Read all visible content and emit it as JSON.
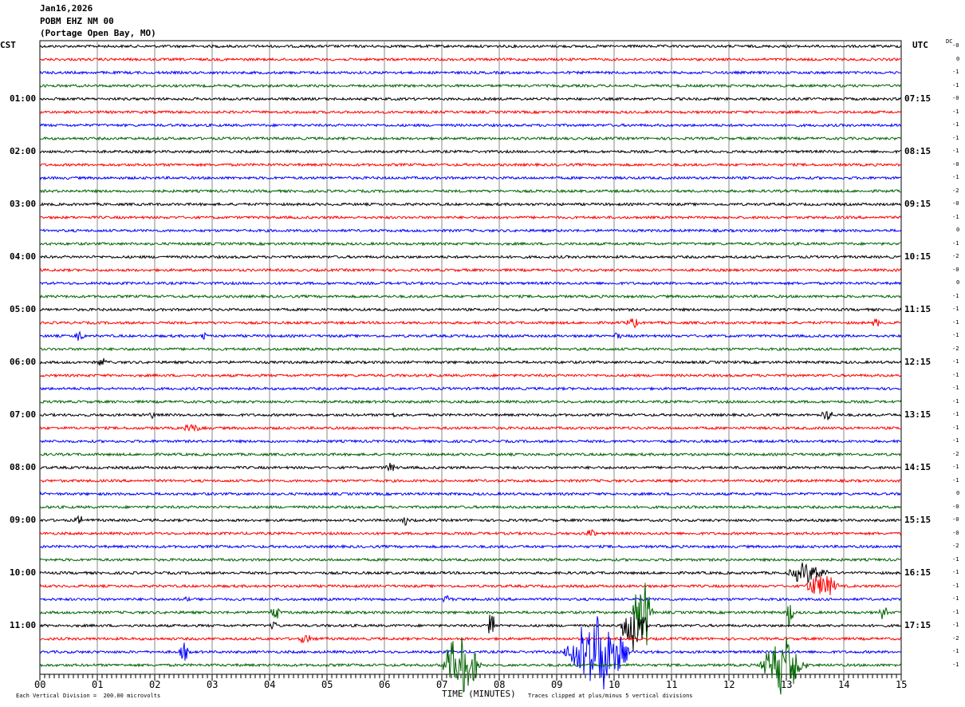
{
  "header": {
    "date": "Jan16,2026",
    "station": "POBM EHZ NM 00",
    "location": "(Portage Open Bay, MO)"
  },
  "left_tz": "CST",
  "right_tz": "UTC",
  "dc_label": "DC",
  "footer": {
    "scale": "Each Vertical Division =  200.00 microvolts",
    "xlabel": "TIME (MINUTES)",
    "clip_note": "Traces clipped at plus/minus 5 vertical divisions"
  },
  "chart_data": {
    "type": "line",
    "title": "Jan16,2026 POBM EHZ NM 00 (Portage Open Bay, MO)",
    "xlabel": "TIME (MINUTES)",
    "xlim": [
      0,
      15
    ],
    "x_ticks": [
      "00",
      "01",
      "02",
      "03",
      "04",
      "05",
      "06",
      "07",
      "08",
      "09",
      "10",
      "11",
      "12",
      "13",
      "14",
      "15"
    ],
    "grid": "vertical every minute",
    "trace_count": 48,
    "minutes_per_trace": 15,
    "trace_colors": [
      "#000000",
      "#ff0000",
      "#0000ff",
      "#006400"
    ],
    "left_labels": [
      {
        "trace": 4,
        "label": "01:00"
      },
      {
        "trace": 8,
        "label": "02:00"
      },
      {
        "trace": 12,
        "label": "03:00"
      },
      {
        "trace": 16,
        "label": "04:00"
      },
      {
        "trace": 20,
        "label": "05:00"
      },
      {
        "trace": 24,
        "label": "06:00"
      },
      {
        "trace": 28,
        "label": "07:00"
      },
      {
        "trace": 32,
        "label": "08:00"
      },
      {
        "trace": 36,
        "label": "09:00"
      },
      {
        "trace": 40,
        "label": "10:00"
      },
      {
        "trace": 44,
        "label": "11:00"
      }
    ],
    "right_labels": [
      {
        "trace": 4,
        "label": "07:15"
      },
      {
        "trace": 8,
        "label": "08:15"
      },
      {
        "trace": 12,
        "label": "09:15"
      },
      {
        "trace": 16,
        "label": "10:15"
      },
      {
        "trace": 20,
        "label": "11:15"
      },
      {
        "trace": 24,
        "label": "12:15"
      },
      {
        "trace": 28,
        "label": "13:15"
      },
      {
        "trace": 32,
        "label": "14:15"
      },
      {
        "trace": 36,
        "label": "15:15"
      },
      {
        "trace": 40,
        "label": "16:15"
      },
      {
        "trace": 44,
        "label": "17:15"
      }
    ],
    "dc_offsets": [
      "-0",
      "0",
      "-1",
      "-1",
      "-0",
      "-1",
      "-1",
      "-1",
      "-1",
      "-0",
      "-1",
      "-2",
      "-0",
      "-1",
      "0",
      "-1",
      "-2",
      "-0",
      "0",
      "-1",
      "-1",
      "-1",
      "-1",
      "-2",
      "-1",
      "-1",
      "-1",
      "-1",
      "-1",
      "-1",
      "-1",
      "-2",
      "-1",
      "-1",
      "0",
      "-0",
      "-0",
      "-0",
      "-2",
      "-1",
      "-1",
      "-1",
      "-1",
      "-1",
      "-1",
      "-2",
      "-1",
      "-1"
    ]
  }
}
